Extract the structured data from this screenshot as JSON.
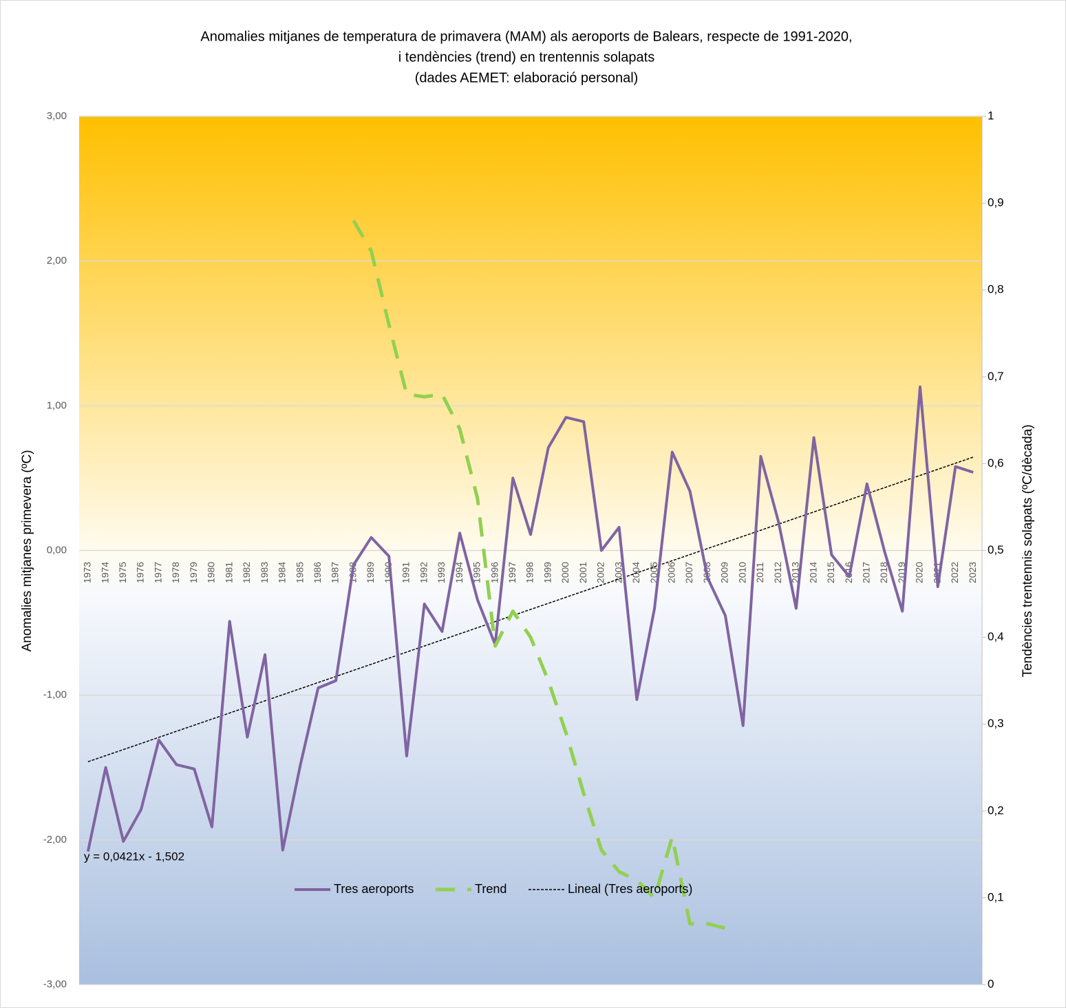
{
  "chart_data": {
    "type": "line",
    "title": [
      "Anomalies mitjanes de temperatura de primavera (MAM) als aeroports de Balears, respecte de 1991-2020,",
      "i tendències (trend) en trentennis solapats",
      "(dades AEMET: elaboració personal)"
    ],
    "y_label": "Anomalies mitjanes primevera (ºC)",
    "y2_label": "Tendències trentennis solapats (ºC/dècada)",
    "categories": [
      "1973",
      "1974",
      "1975",
      "1976",
      "1977",
      "1978",
      "1979",
      "1980",
      "1981",
      "1982",
      "1983",
      "1984",
      "1985",
      "1986",
      "1987",
      "1988",
      "1989",
      "1990",
      "1991",
      "1992",
      "1993",
      "1994",
      "1995",
      "1996",
      "1997",
      "1998",
      "1999",
      "2000",
      "2001",
      "2002",
      "2003",
      "2004",
      "2005",
      "2006",
      "2007",
      "2008",
      "2009",
      "2010",
      "2011",
      "2012",
      "2013",
      "2014",
      "2015",
      "2016",
      "2017",
      "2018",
      "2019",
      "2020",
      "2021",
      "2022",
      "2023"
    ],
    "series": [
      {
        "name": "Tres aeroports",
        "color": "#8064a2",
        "values": [
          -2.08,
          -1.5,
          -2.01,
          -1.79,
          -1.31,
          -1.48,
          -1.51,
          -1.91,
          -0.49,
          -1.29,
          -0.72,
          -2.07,
          -1.48,
          -0.95,
          -0.9,
          -0.1,
          0.09,
          -0.04,
          -1.42,
          -0.37,
          -0.56,
          0.12,
          -0.34,
          -0.65,
          0.5,
          0.11,
          0.71,
          0.92,
          0.89,
          0.0,
          0.16,
          -1.03,
          -0.4,
          0.68,
          0.41,
          -0.19,
          -0.45,
          -1.21,
          0.65,
          0.2,
          -0.4,
          0.78,
          -0.03,
          -0.18,
          0.46,
          -0.01,
          -0.42,
          1.13,
          -0.25,
          0.58,
          0.54
        ]
      },
      {
        "name": "Trend",
        "color": "#92d050",
        "axis": "y2",
        "dashed": true,
        "values": [
          null,
          null,
          null,
          null,
          null,
          null,
          null,
          null,
          null,
          null,
          null,
          null,
          null,
          null,
          null,
          0.88,
          0.845,
          0.76,
          0.68,
          0.677,
          0.68,
          0.64,
          0.56,
          0.39,
          0.43,
          0.4,
          0.35,
          0.29,
          0.22,
          0.155,
          0.13,
          0.12,
          0.1,
          0.17,
          0.07,
          0.07,
          0.065,
          null,
          null,
          null,
          null,
          null,
          null,
          null,
          null,
          null,
          null,
          null,
          null,
          null,
          null
        ]
      }
    ],
    "trendline": {
      "name": "Lineal  (Tres aeroports)",
      "color": "#000000",
      "slope": 0.0421,
      "intercept": -1.502,
      "label": "y = 0,0421x - 1,502"
    },
    "ylim": [
      -3,
      3
    ],
    "yticks": [
      {
        "value": -3,
        "label": "-3,00"
      },
      {
        "value": -2,
        "label": "-2,00"
      },
      {
        "value": -1,
        "label": "-1,00"
      },
      {
        "value": 0,
        "label": "0,00"
      },
      {
        "value": 1,
        "label": "1,00"
      },
      {
        "value": 2,
        "label": "2,00"
      },
      {
        "value": 3,
        "label": "3,00"
      }
    ],
    "y2lim": [
      0,
      1
    ],
    "y2ticks": [
      0,
      {
        "value": 0.1,
        "label": "0,1"
      },
      {
        "value": 0.2,
        "label": "0,2"
      },
      {
        "value": 0.3,
        "label": "0,3"
      },
      {
        "value": 0.4,
        "label": "0,4"
      },
      {
        "value": 0.5,
        "label": "0,5"
      },
      {
        "value": 0.6,
        "label": "0,6"
      },
      {
        "value": 0.7,
        "label": "0,7"
      },
      {
        "value": 0.8,
        "label": "0,8"
      },
      {
        "value": 0.9,
        "label": "0,9"
      },
      1
    ],
    "grid": true,
    "legend": "bottom"
  }
}
